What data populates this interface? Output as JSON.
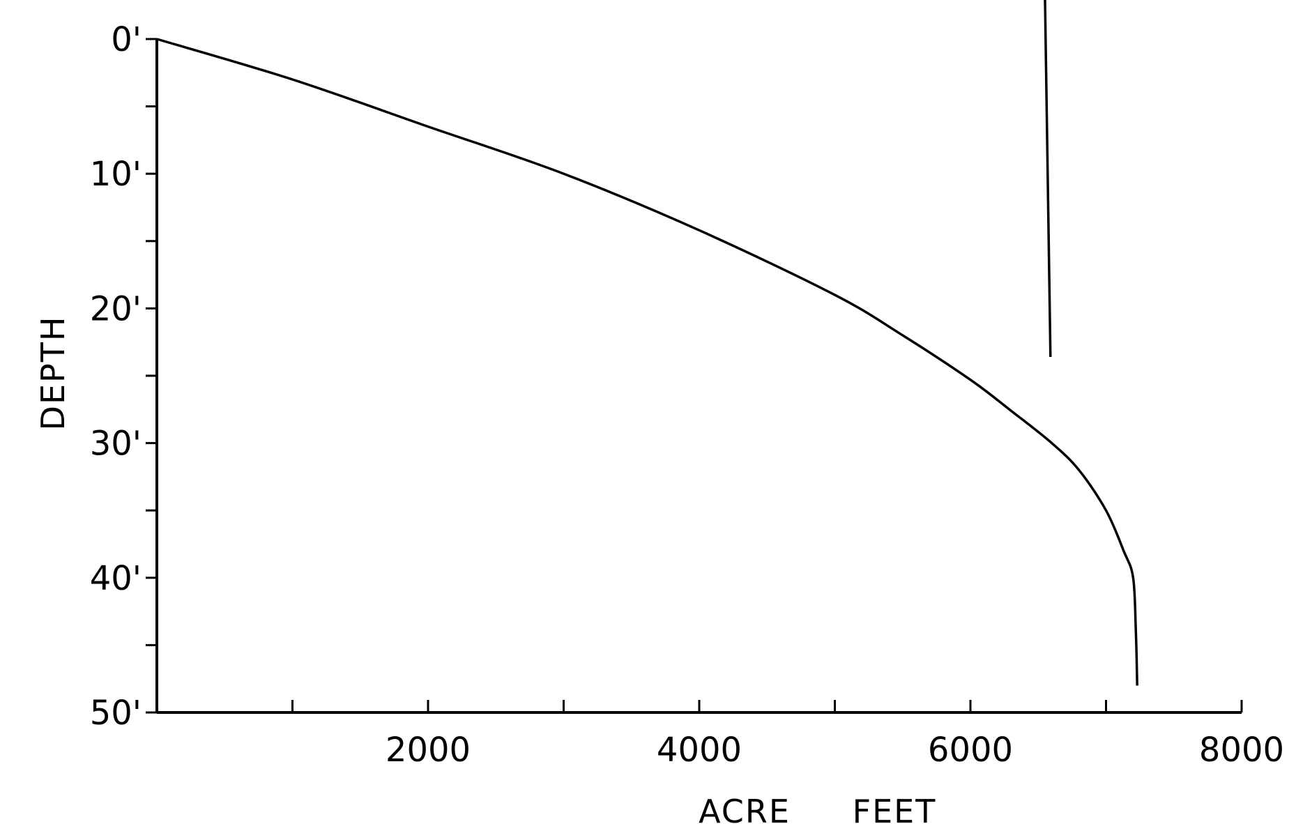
{
  "chart_data": {
    "type": "line",
    "title": "",
    "xlabel_parts": [
      "ACRE",
      "FEET"
    ],
    "ylabel": "DEPTH",
    "xlim": [
      0,
      8000
    ],
    "ylim": [
      0,
      50
    ],
    "y_inverted": true,
    "grid": false,
    "x_ticks": [
      1000,
      2000,
      3000,
      4000,
      5000,
      6000,
      7000,
      8000
    ],
    "x_tick_labels": [
      {
        "value": 2000,
        "label": "2000"
      },
      {
        "value": 4000,
        "label": "4000"
      },
      {
        "value": 6000,
        "label": "6000"
      },
      {
        "value": 8000,
        "label": "8000"
      }
    ],
    "y_ticks": [
      0,
      5,
      10,
      15,
      20,
      25,
      30,
      35,
      40,
      45,
      50
    ],
    "y_tick_labels": [
      {
        "value": 0,
        "label": "0'"
      },
      {
        "value": 10,
        "label": "10'"
      },
      {
        "value": 20,
        "label": "20'"
      },
      {
        "value": 30,
        "label": "30'"
      },
      {
        "value": 40,
        "label": "40'"
      },
      {
        "value": 50,
        "label": "50'"
      }
    ],
    "series": [
      {
        "points": [
          {
            "x": 0,
            "y": 0
          },
          {
            "x": 1000,
            "y": 3
          },
          {
            "x": 2000,
            "y": 6.5
          },
          {
            "x": 3000,
            "y": 10
          },
          {
            "x": 4000,
            "y": 14.2
          },
          {
            "x": 5000,
            "y": 19
          },
          {
            "x": 5500,
            "y": 22
          },
          {
            "x": 6000,
            "y": 25.3
          },
          {
            "x": 6300,
            "y": 27.6
          },
          {
            "x": 6600,
            "y": 30
          },
          {
            "x": 6800,
            "y": 32
          },
          {
            "x": 7000,
            "y": 35
          },
          {
            "x": 7130,
            "y": 38
          },
          {
            "x": 7200,
            "y": 40
          },
          {
            "x": 7220,
            "y": 44
          },
          {
            "x": 7230,
            "y": 48
          }
        ]
      },
      {
        "points": [
          {
            "x": 6550,
            "y": -3
          },
          {
            "x": 6590,
            "y": 23.6
          }
        ]
      }
    ]
  }
}
